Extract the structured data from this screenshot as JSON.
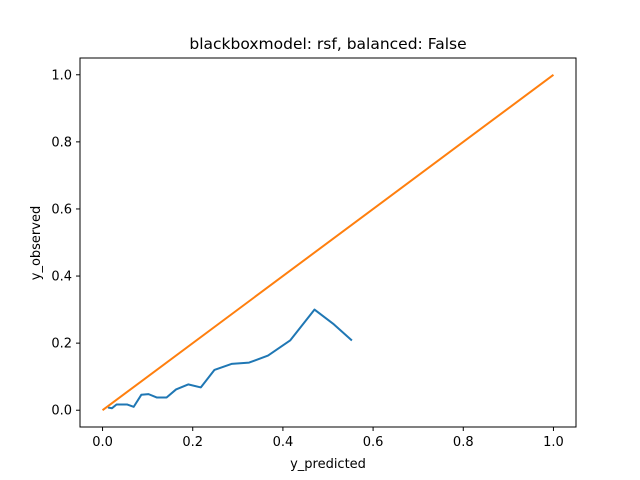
{
  "chart_data": {
    "type": "line",
    "title": "blackboxmodel: rsf, balanced: False",
    "xlabel": "y_predicted",
    "ylabel": "y_observed",
    "xlim": [
      -0.05,
      1.05
    ],
    "ylim": [
      -0.05,
      1.05
    ],
    "xticks": [
      0.0,
      0.2,
      0.4,
      0.6,
      0.8,
      1.0
    ],
    "yticks": [
      0.0,
      0.2,
      0.4,
      0.6,
      0.8,
      1.0
    ],
    "xtick_labels": [
      "0.0",
      "0.2",
      "0.4",
      "0.6",
      "0.8",
      "1.0"
    ],
    "ytick_labels": [
      "0.0",
      "0.2",
      "0.4",
      "0.6",
      "0.8",
      "1.0"
    ],
    "grid": false,
    "legend": "none",
    "series": [
      {
        "color": "#1f77b4",
        "x": [
          0.012,
          0.021,
          0.031,
          0.044,
          0.055,
          0.069,
          0.086,
          0.102,
          0.12,
          0.142,
          0.163,
          0.19,
          0.218,
          0.248,
          0.286,
          0.325,
          0.367,
          0.416,
          0.47,
          0.513,
          0.553
        ],
        "y": [
          0.008,
          0.006,
          0.017,
          0.017,
          0.017,
          0.01,
          0.046,
          0.048,
          0.038,
          0.038,
          0.062,
          0.077,
          0.068,
          0.12,
          0.138,
          0.142,
          0.163,
          0.208,
          0.3,
          0.256,
          0.208
        ]
      },
      {
        "color": "#ff7f0e",
        "x": [
          0.0,
          1.0
        ],
        "y": [
          0.0,
          1.0
        ]
      }
    ]
  }
}
